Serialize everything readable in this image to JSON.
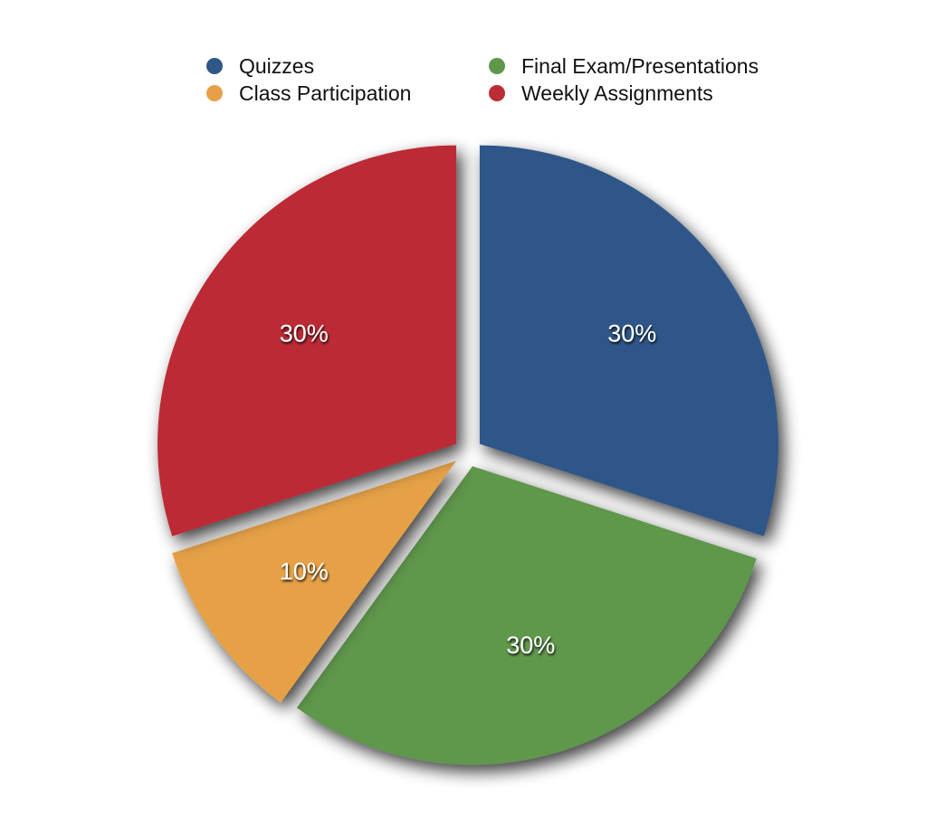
{
  "chart_data": {
    "type": "pie",
    "title": "",
    "legend_position": "top",
    "categories": [
      "Quizzes",
      "Final Exam/Presentations",
      "Class Participation",
      "Weekly Assignments"
    ],
    "values": [
      30,
      30,
      10,
      30
    ],
    "value_labels": [
      "30%",
      "30%",
      "10%",
      "30%"
    ],
    "colors": [
      "#2f5788",
      "#5f974c",
      "#e6a146",
      "#bc2c34"
    ]
  },
  "legend": {
    "items": [
      {
        "label": "Quizzes",
        "color": "#2f5788"
      },
      {
        "label": "Class Participation",
        "color": "#e6a146"
      },
      {
        "label": "Final Exam/Presentations",
        "color": "#5f974c"
      },
      {
        "label": "Weekly Assignments",
        "color": "#bc2c34"
      }
    ]
  }
}
